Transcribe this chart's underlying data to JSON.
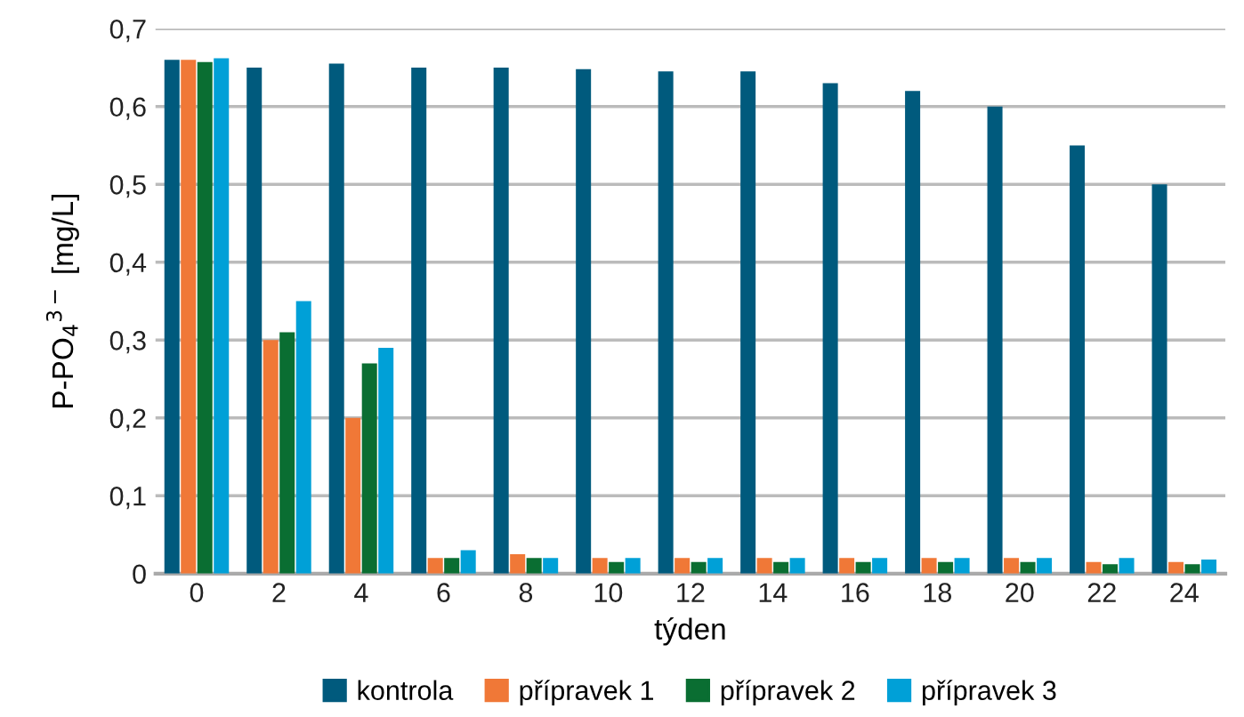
{
  "chart_data": {
    "type": "bar",
    "xlabel": "týden",
    "ylabel": "P-PO$_{4}$$^{3−}$ [mg/L]",
    "categories": [
      "0",
      "2",
      "4",
      "6",
      "8",
      "10",
      "12",
      "14",
      "16",
      "18",
      "20",
      "22",
      "24"
    ],
    "series": [
      {
        "name": "kontrola",
        "color": "#005a7d",
        "values": [
          0.66,
          0.65,
          0.655,
          0.65,
          0.65,
          0.648,
          0.645,
          0.645,
          0.63,
          0.62,
          0.6,
          0.55,
          0.5
        ]
      },
      {
        "name": "přípravek 1",
        "color": "#f07837",
        "values": [
          0.66,
          0.3,
          0.2,
          0.02,
          0.025,
          0.02,
          0.02,
          0.02,
          0.02,
          0.02,
          0.02,
          0.015,
          0.015
        ]
      },
      {
        "name": "přípravek 2",
        "color": "#0a6e32",
        "values": [
          0.657,
          0.31,
          0.27,
          0.02,
          0.02,
          0.015,
          0.015,
          0.015,
          0.015,
          0.015,
          0.015,
          0.012,
          0.012
        ]
      },
      {
        "name": "přípravek 3",
        "color": "#00a0d7",
        "values": [
          0.662,
          0.35,
          0.29,
          0.03,
          0.02,
          0.02,
          0.02,
          0.02,
          0.02,
          0.02,
          0.02,
          0.02,
          0.018
        ]
      }
    ],
    "ylim": [
      0,
      0.7
    ],
    "yticks": [
      0,
      {
        "value": 0.1,
        "label": "0,1"
      },
      {
        "value": 0.2,
        "label": "0,2"
      },
      {
        "value": 0.3,
        "label": "0,3"
      },
      {
        "value": 0.4,
        "label": "0,4"
      },
      {
        "value": 0.5,
        "label": "0,5"
      },
      {
        "value": 0.6,
        "label": "0,6"
      },
      {
        "value": 0.7,
        "label": "0,7"
      }
    ],
    "grid": "y",
    "legend": "bottom"
  }
}
